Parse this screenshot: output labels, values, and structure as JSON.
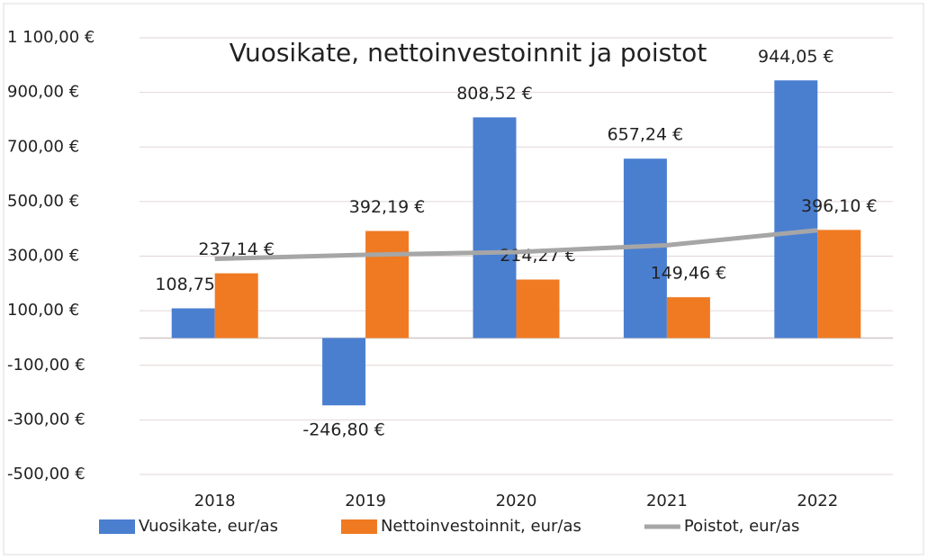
{
  "chart_data": {
    "type": "bar",
    "title": "Vuosikate, nettoinvestoinnit ja poistot",
    "categories": [
      "2018",
      "2019",
      "2020",
      "2021",
      "2022"
    ],
    "series": [
      {
        "name": "Vuosikate, eur/as",
        "color": "#4a7fd0",
        "type": "bar",
        "values": [
          108.75,
          -246.8,
          808.52,
          657.24,
          944.05
        ],
        "value_labels": [
          "108,75 €",
          "-246,80 €",
          "808,52 €",
          "657,24 €",
          "944,05 €"
        ]
      },
      {
        "name": "Nettoinvestoinnit, eur/as",
        "color": "#f07a22",
        "type": "bar",
        "values": [
          237.14,
          392.19,
          214.27,
          149.46,
          396.1
        ],
        "value_labels": [
          "237,14 €",
          "392,19 €",
          "214,27 €",
          "149,46 €",
          "396,10 €"
        ]
      },
      {
        "name": "Poistot, eur/as",
        "color": "#a6a6a6",
        "type": "line",
        "values": [
          290,
          305,
          315,
          340,
          395
        ]
      }
    ],
    "ylim": [
      -500,
      1100
    ],
    "yticks": [
      {
        "value": -500,
        "label": "-500,00 €"
      },
      {
        "value": -300,
        "label": "-300,00 €"
      },
      {
        "value": -100,
        "label": "-100,00 €"
      },
      {
        "value": 100,
        "label": "100,00 €"
      },
      {
        "value": 300,
        "label": "300,00 €"
      },
      {
        "value": 500,
        "label": "500,00 €"
      },
      {
        "value": 700,
        "label": "700,00 €"
      },
      {
        "value": 900,
        "label": "900,00 €"
      },
      {
        "value": 1100,
        "label": "1 100,00 €"
      }
    ],
    "grid": true,
    "legend": "bottom"
  }
}
